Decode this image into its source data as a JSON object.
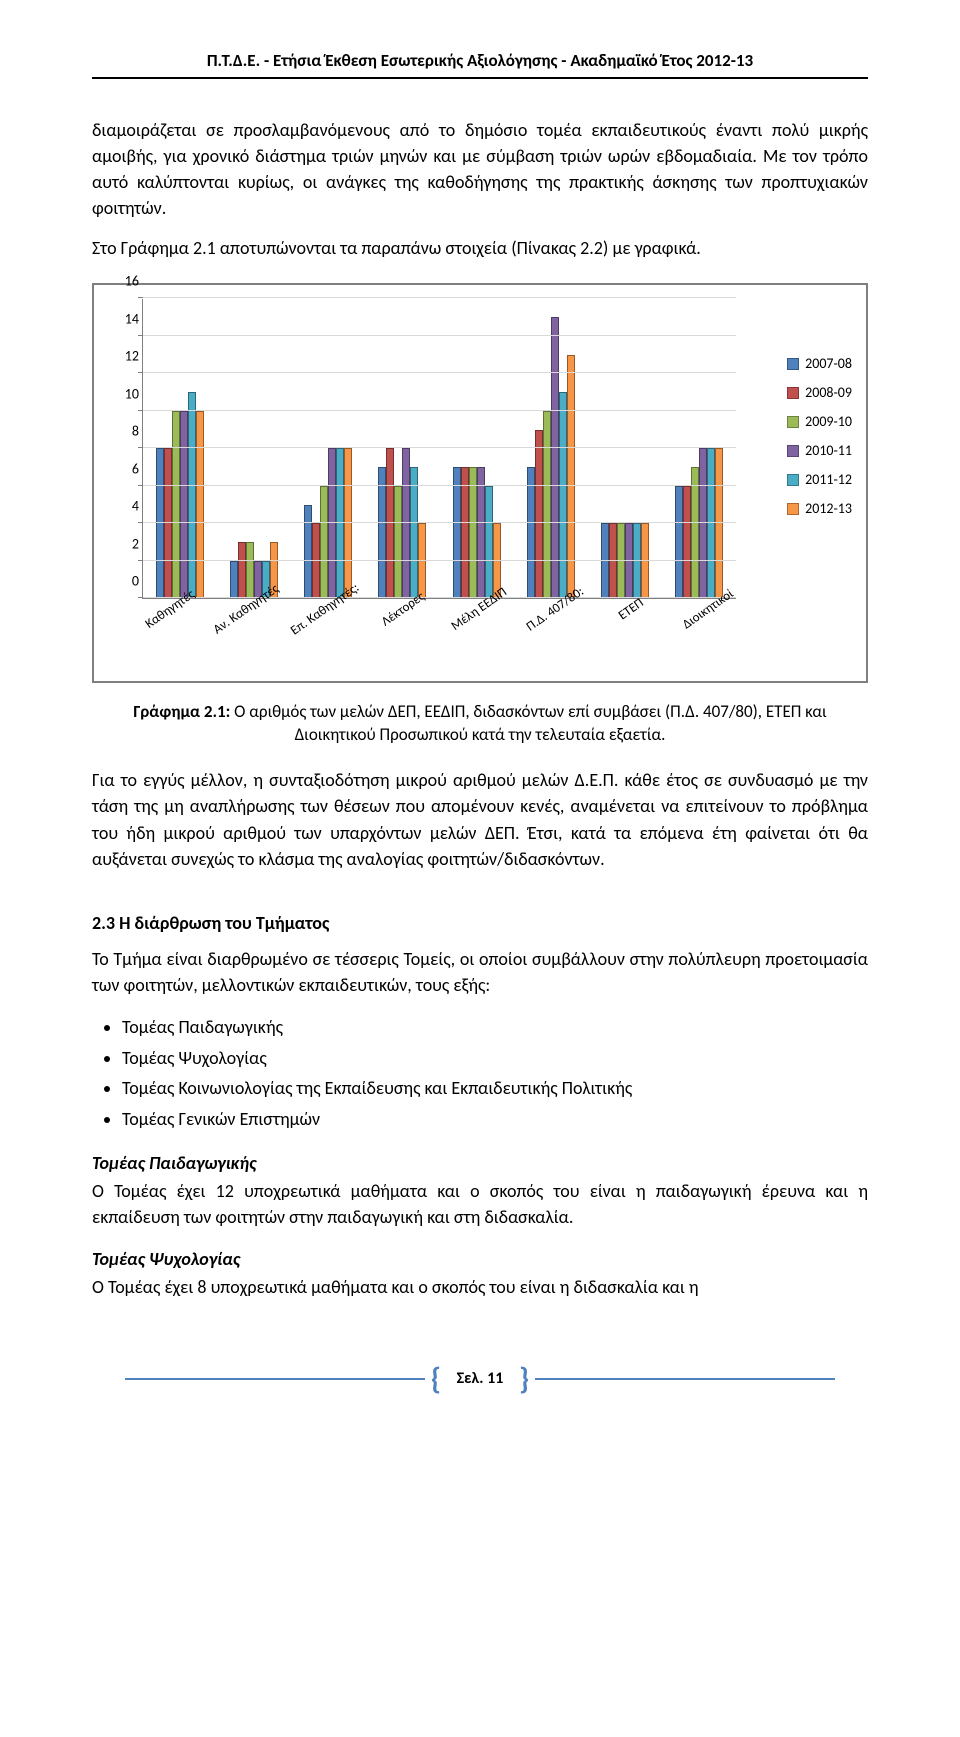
{
  "header": "Π.Τ.Δ.Ε. - Ετήσια Έκθεση Εσωτερικής Αξιολόγησης - Ακαδημαϊκό Έτος 2012-13",
  "para1": "διαμοιράζεται σε προσλαμβανόμενους από το δημόσιο τομέα εκπαιδευτικούς έναντι πολύ μικρής αμοιβής, για χρονικό διάστημα τριών μηνών και με σύμβαση τριών ωρών εβδομαδιαία. Με τον τρόπο αυτό καλύπτονται κυρίως, οι ανάγκες της καθοδήγησης της πρακτικής άσκησης των προπτυχιακών φοιτητών.",
  "para2": "Στο Γράφημα 2.1 αποτυπώνονται τα παραπάνω στοιχεία (Πίνακας 2.2) με γραφικά.",
  "chart": {
    "ymax": 16,
    "ystep": 2,
    "series_colors": [
      "#4f81bd",
      "#c0504d",
      "#9bbb59",
      "#8064a2",
      "#4bacc6",
      "#f79646"
    ],
    "series_labels": [
      "2007-08",
      "2008-09",
      "2009-10",
      "2010-11",
      "2011-12",
      "2012-13"
    ],
    "categories": [
      "Καθηγητές",
      "Αν. Καθηγητές",
      "Επ. Καθηγητές:",
      "Λέκτορες",
      "Μέλη ΕΕΔΙΠ",
      "Π.Δ. 407/80:",
      "ΕΤΕΠ",
      "Διοικητικοί"
    ],
    "values": [
      [
        8,
        8,
        10,
        10,
        11,
        10
      ],
      [
        2,
        3,
        3,
        2,
        2,
        3
      ],
      [
        5,
        4,
        6,
        8,
        8,
        8
      ],
      [
        7,
        8,
        6,
        8,
        7,
        4
      ],
      [
        7,
        7,
        7,
        7,
        6,
        4
      ],
      [
        7,
        9,
        10,
        15,
        11,
        13
      ],
      [
        4,
        4,
        4,
        4,
        4,
        4
      ],
      [
        6,
        6,
        7,
        8,
        8,
        8
      ]
    ]
  },
  "caption_bold": "Γράφημα 2.1:",
  "caption_rest": " Ο αριθμός των μελών ΔΕΠ, ΕΕΔΙΠ, διδασκόντων επί συμβάσει (Π.Δ. 407/80), ΕΤΕΠ και Διοικητικού Προσωπικού κατά την τελευταία εξαετία.",
  "para3": "Για το εγγύς μέλλον, η συνταξιοδότηση μικρού αριθμού μελών Δ.Ε.Π. κάθε έτος σε συνδυασμό με την τάση της μη αναπλήρωσης των θέσεων που απομένουν κενές, αναμένεται να επιτείνουν το πρόβλημα του ήδη μικρού αριθμού των υπαρχόντων μελών ΔΕΠ. Έτσι, κατά τα επόμενα έτη φαίνεται ότι θα αυξάνεται συνεχώς το κλάσμα της αναλογίας φοιτητών/διδασκόντων.",
  "section23": "2.3  Η διάρθρωση του Τμήματος",
  "para4": "Το Τμήμα είναι διαρθρωμένο σε τέσσερις Τομείς, οι οποίοι συμβάλλουν στην πολύπλευρη προετοιμασία των φοιτητών, μελλοντικών εκπαιδευτικών, τους εξής:",
  "bullets": [
    "Τομέας Παιδαγωγικής",
    "Τομέας Ψυχολογίας",
    "Τομέας Κοινωνιολογίας της Εκπαίδευσης και Εκπαιδευτικής Πολιτικής",
    "Τομέας Γενικών Επιστημών"
  ],
  "sub1_head": "Τομέας Παιδαγωγικής",
  "sub1_body": "Ο Τομέας έχει 12 υποχρεωτικά μαθήματα και ο σκοπός του είναι η παιδαγωγική έρευνα και η εκπαίδευση των φοιτητών στην παιδαγωγική και στη διδασκαλία.",
  "sub2_head": "Τομέας Ψυχολογίας",
  "sub2_body": "Ο Τομέας έχει 8 υποχρεωτικά μαθήματα και ο σκοπός του είναι η διδασκαλία και η",
  "footer_label": "Σελ.",
  "footer_page": "11"
}
